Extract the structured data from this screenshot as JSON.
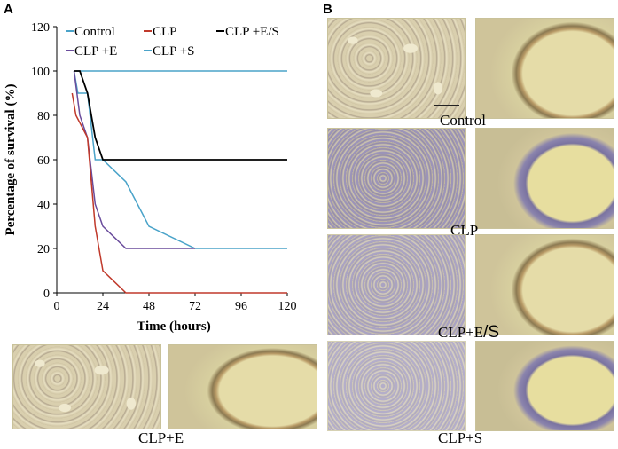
{
  "panels": {
    "a": "A",
    "b": "B"
  },
  "chart_data": {
    "type": "line",
    "xlabel": "Time (hours)",
    "ylabel": "Percentage of survival (%)",
    "xlim": [
      0,
      120
    ],
    "ylim": [
      0,
      120
    ],
    "xticks": [
      0,
      24,
      48,
      72,
      96,
      120
    ],
    "yticks": [
      0,
      20,
      40,
      60,
      80,
      100,
      120
    ],
    "grid": false,
    "legend": "top, inside plot, two rows",
    "series": [
      {
        "name": "Control",
        "color": "#4aa3c9",
        "points": [
          [
            10,
            100
          ],
          [
            120,
            100
          ]
        ]
      },
      {
        "name": "CLP",
        "color": "#c0392b",
        "points": [
          [
            8,
            90
          ],
          [
            10,
            80
          ],
          [
            16,
            70
          ],
          [
            20,
            30
          ],
          [
            24,
            10
          ],
          [
            36,
            0
          ],
          [
            120,
            0
          ]
        ]
      },
      {
        "name": "CLP +E/S",
        "color": "#000000",
        "points": [
          [
            9,
            100
          ],
          [
            12,
            100
          ],
          [
            16,
            90
          ],
          [
            20,
            70
          ],
          [
            24,
            60
          ],
          [
            120,
            60
          ]
        ]
      },
      {
        "name": "CLP +E",
        "color": "#6a4c9c",
        "points": [
          [
            9,
            100
          ],
          [
            12,
            80
          ],
          [
            16,
            70
          ],
          [
            20,
            40
          ],
          [
            24,
            30
          ],
          [
            36,
            20
          ],
          [
            72,
            20
          ]
        ]
      },
      {
        "name": "CLP +S",
        "color": "#4aa3c9",
        "points": [
          [
            9,
            100
          ],
          [
            11,
            90
          ],
          [
            16,
            90
          ],
          [
            20,
            60
          ],
          [
            24,
            60
          ],
          [
            36,
            50
          ],
          [
            48,
            30
          ],
          [
            72,
            20
          ],
          [
            120,
            20
          ]
        ]
      }
    ]
  },
  "images": {
    "control": "Control",
    "clp": "CLP",
    "clp_es_prefix": "CLP+E",
    "clp_es_suffix": "/S",
    "clp_s": "CLP+S",
    "clp_e": "CLP+E"
  }
}
